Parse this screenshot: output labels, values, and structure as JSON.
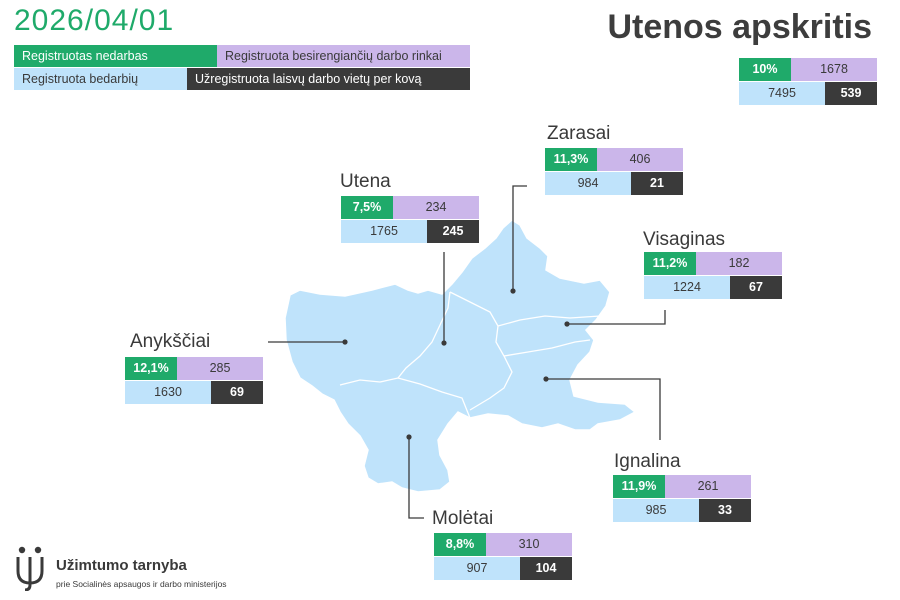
{
  "date": "2026/04/01",
  "region_title": "Utenos apskritis",
  "legend": {
    "unemployment_rate": "Registruotas nedarbas",
    "job_seekers": "Registruota besirengiančių darbo rinkai",
    "unemployed": "Registruota bedarbių",
    "vacancies": "Užregistruota laisvų darbo vietų per kovą"
  },
  "colors": {
    "rate": "#1faa6a",
    "job_seekers": "#cbb6ea",
    "unemployed": "#bfe3fb",
    "vacancies": "#3a3a3a",
    "map_fill": "#bfe3fb"
  },
  "total": {
    "rate": "10%",
    "job_seekers": "1678",
    "unemployed": "7495",
    "vacancies": "539"
  },
  "districts": {
    "zarasai": {
      "name": "Zarasai",
      "rate": "11,3%",
      "job_seekers": "406",
      "unemployed": "984",
      "vacancies": "21"
    },
    "utena": {
      "name": "Utena",
      "rate": "7,5%",
      "job_seekers": "234",
      "unemployed": "1765",
      "vacancies": "245"
    },
    "visaginas": {
      "name": "Visaginas",
      "rate": "11,2%",
      "job_seekers": "182",
      "unemployed": "1224",
      "vacancies": "67"
    },
    "anyksciai": {
      "name": "Anykščiai",
      "rate": "12,1%",
      "job_seekers": "285",
      "unemployed": "1630",
      "vacancies": "69"
    },
    "ignalina": {
      "name": "Ignalina",
      "rate": "11,9%",
      "job_seekers": "261",
      "unemployed": "985",
      "vacancies": "33"
    },
    "moletai": {
      "name": "Molėtai",
      "rate": "8,8%",
      "job_seekers": "310",
      "unemployed": "907",
      "vacancies": "104"
    }
  },
  "logo": {
    "name": "Užimtumo tarnyba",
    "subtitle": "prie Socialinės apsaugos ir darbo ministerijos"
  }
}
